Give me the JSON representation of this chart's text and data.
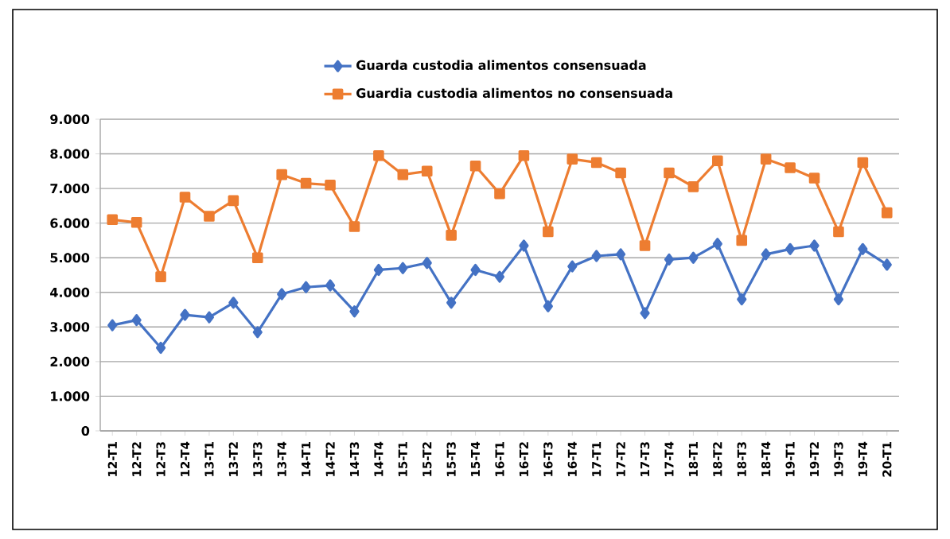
{
  "chart_data": {
    "type": "line",
    "categories": [
      "12-T1",
      "12-T2",
      "12-T3",
      "12-T4",
      "13-T1",
      "13-T2",
      "13-T3",
      "13-T4",
      "14-T1",
      "14-T2",
      "14-T3",
      "14-T4",
      "15-T1",
      "15-T2",
      "15-T3",
      "15-T4",
      "16-T1",
      "16-T2",
      "16-T3",
      "16-T4",
      "17-T1",
      "17-T2",
      "17-T3",
      "17-T4",
      "18-T1",
      "18-T2",
      "18-T3",
      "18-T4",
      "19-T1",
      "19-T2",
      "19-T3",
      "19-T4",
      "20-T1"
    ],
    "series": [
      {
        "name": "Guarda custodia alimentos consensuada",
        "color": "#4472c4",
        "marker": "diamond",
        "values": [
          3050,
          3200,
          2400,
          3350,
          3280,
          3700,
          2850,
          3950,
          4150,
          4200,
          3450,
          4650,
          4700,
          4850,
          3700,
          4650,
          4450,
          5350,
          3600,
          4750,
          5050,
          5100,
          3400,
          4950,
          5000,
          5400,
          3800,
          5100,
          5250,
          5350,
          3800,
          5250,
          4800
        ]
      },
      {
        "name": "Guardia custodia alimentos no consensuada",
        "color": "#ed7d31",
        "marker": "square",
        "values": [
          6100,
          6020,
          4450,
          6750,
          6200,
          6650,
          5000,
          7400,
          7150,
          7100,
          5900,
          7950,
          7400,
          7500,
          5650,
          7650,
          6850,
          7950,
          5750,
          7850,
          7750,
          7450,
          5350,
          7450,
          7050,
          7800,
          5500,
          7850,
          7600,
          7300,
          5750,
          7750,
          6300
        ]
      }
    ],
    "ylim": [
      0,
      9000
    ],
    "yticks": [
      0,
      {
        "value": 1000,
        "label": "1.000"
      },
      {
        "value": 2000,
        "label": "2.000"
      },
      {
        "value": 3000,
        "label": "3.000"
      },
      {
        "value": 4000,
        "label": "4.000"
      },
      {
        "value": 5000,
        "label": "5.000"
      },
      {
        "value": 6000,
        "label": "6.000"
      },
      {
        "value": 7000,
        "label": "7.000"
      },
      {
        "value": 8000,
        "label": "8.000"
      },
      {
        "value": 9000,
        "label": "9.000"
      }
    ],
    "grid": "y",
    "legend": "top",
    "line_style": "solid"
  }
}
